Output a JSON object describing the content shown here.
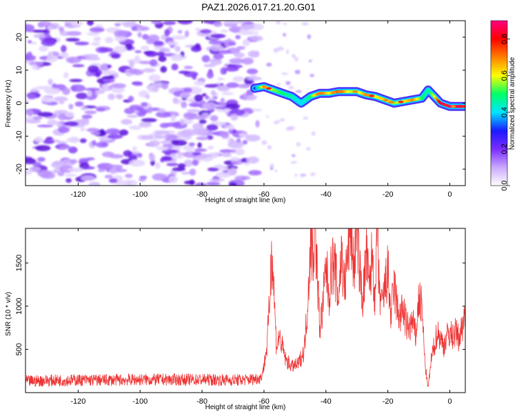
{
  "chart_data": [
    {
      "type": "heatmap",
      "title": "PAZ1.2026.017.21.20.G01",
      "xlabel": "Height of straight line (km)",
      "ylabel": "Frequency (Hz)",
      "xlim": [
        -137,
        5
      ],
      "ylim": [
        -25,
        25
      ],
      "xticks": [
        -120,
        -100,
        -80,
        -60,
        -40,
        -20,
        0
      ],
      "yticks": [
        -20,
        -10,
        0,
        10,
        20
      ],
      "colorbar": {
        "label": "Normalized spectral amplitude",
        "range": [
          0,
          0.9
        ],
        "ticks": [
          0.0,
          0.2,
          0.4,
          0.6,
          0.8
        ],
        "colormap": [
          "#ffffff",
          "#c9a8ff",
          "#7a2bff",
          "#1a1aff",
          "#00e5ff",
          "#00ff66",
          "#ffff00",
          "#ff8000",
          "#ff0000",
          "#ff0080"
        ]
      },
      "noise_region_x": [
        -137,
        -62
      ],
      "signal_trace": {
        "x": [
          -63,
          -60,
          -57,
          -54,
          -51,
          -48,
          -45,
          -42,
          -39,
          -36,
          -33,
          -30,
          -27,
          -24,
          -21,
          -18,
          -15,
          -12,
          -9,
          -7,
          -5,
          -3,
          0,
          5
        ],
        "frequency": [
          4.5,
          5,
          4,
          3,
          2,
          0,
          2,
          3,
          3,
          3.5,
          3.5,
          3.5,
          2.5,
          2,
          1,
          0,
          0.5,
          1,
          1.5,
          4,
          2,
          0,
          -1,
          -1
        ],
        "amplitude": [
          0.3,
          0.7,
          0.55,
          0.5,
          0.45,
          0.4,
          0.5,
          0.75,
          0.6,
          0.8,
          0.6,
          0.55,
          0.7,
          0.6,
          0.65,
          0.55,
          0.6,
          0.7,
          0.5,
          0.45,
          0.6,
          0.85,
          0.9,
          0.85
        ]
      }
    },
    {
      "type": "line",
      "xlabel": "Height of straight line (km)",
      "ylabel": "SNR (10 * v/v)",
      "xlim": [
        -137,
        5
      ],
      "ylim": [
        0,
        1900
      ],
      "xticks": [
        -120,
        -100,
        -80,
        -60,
        -40,
        -20,
        0
      ],
      "yticks": [
        500,
        1000,
        1500
      ],
      "series": [
        {
          "name": "SNR",
          "color": "#ee3333",
          "x": [
            -137,
            -130,
            -120,
            -110,
            -100,
            -90,
            -80,
            -70,
            -65,
            -61,
            -60,
            -59,
            -58,
            -57.5,
            -57,
            -56,
            -55,
            -53,
            -51,
            -49,
            -47,
            -46,
            -45,
            -44,
            -43.5,
            -43,
            -42,
            -41,
            -40,
            -39,
            -38,
            -37,
            -36,
            -35,
            -34,
            -33,
            -32,
            -31,
            -30,
            -29,
            -28,
            -27,
            -26,
            -25,
            -24,
            -23.5,
            -23,
            -22,
            -21,
            -20,
            -19,
            -18,
            -17,
            -16,
            -15,
            -14,
            -13,
            -12,
            -11,
            -10,
            -9,
            -8,
            -7,
            -6,
            -5,
            -4,
            -3,
            -2,
            -1,
            0,
            1,
            2,
            3,
            4,
            5
          ],
          "values": [
            130,
            140,
            145,
            145,
            150,
            150,
            150,
            145,
            150,
            170,
            300,
            500,
            1100,
            1580,
            1250,
            500,
            600,
            350,
            280,
            300,
            450,
            900,
            1600,
            1500,
            1900,
            1400,
            700,
            900,
            1350,
            1050,
            1400,
            1300,
            1000,
            1500,
            1100,
            1450,
            1800,
            1300,
            1850,
            1250,
            1000,
            1500,
            1100,
            1500,
            900,
            1900,
            1200,
            900,
            1100,
            1300,
            800,
            1150,
            900,
            800,
            900,
            700,
            700,
            750,
            600,
            1000,
            900,
            300,
            50,
            350,
            500,
            650,
            580,
            500,
            600,
            640,
            600,
            650,
            580,
            700,
            900
          ]
        }
      ]
    }
  ]
}
